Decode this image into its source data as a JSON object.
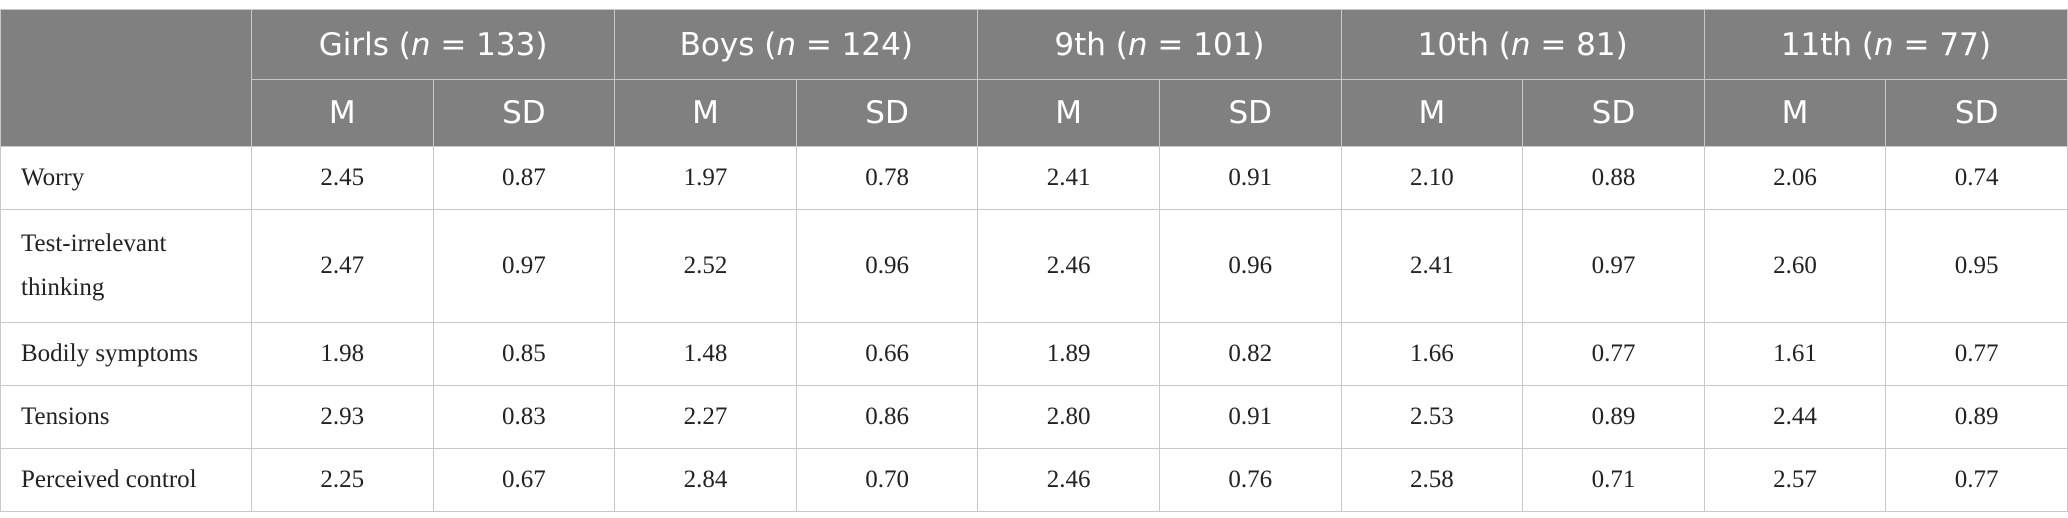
{
  "table": {
    "groups": [
      {
        "before": "Girls (",
        "italic": "n",
        "after": " = 133)"
      },
      {
        "before": "Boys (",
        "italic": "n",
        "after": " = 124)"
      },
      {
        "before": "9th (",
        "italic": "n",
        "after": " = 101)"
      },
      {
        "before": "10th (",
        "italic": "n",
        "after": " = 81)"
      },
      {
        "before": "11th (",
        "italic": "n",
        "after": " = 77)"
      }
    ],
    "subheaders": [
      "M",
      "SD"
    ],
    "rows": [
      {
        "label": "Worry",
        "cells": [
          "2.45",
          "0.87",
          "1.97",
          "0.78",
          "2.41",
          "0.91",
          "2.10",
          "0.88",
          "2.06",
          "0.74"
        ]
      },
      {
        "label": "Test-irrelevant thinking",
        "cells": [
          "2.47",
          "0.97",
          "2.52",
          "0.96",
          "2.46",
          "0.96",
          "2.41",
          "0.97",
          "2.60",
          "0.95"
        ]
      },
      {
        "label": "Bodily symptoms",
        "cells": [
          "1.98",
          "0.85",
          "1.48",
          "0.66",
          "1.89",
          "0.82",
          "1.66",
          "0.77",
          "1.61",
          "0.77"
        ]
      },
      {
        "label": "Tensions",
        "cells": [
          "2.93",
          "0.83",
          "2.27",
          "0.86",
          "2.80",
          "0.91",
          "2.53",
          "0.89",
          "2.44",
          "0.89"
        ]
      },
      {
        "label": "Perceived control",
        "cells": [
          "2.25",
          "0.67",
          "2.84",
          "0.70",
          "2.46",
          "0.76",
          "2.58",
          "0.71",
          "2.57",
          "0.77"
        ]
      }
    ]
  }
}
